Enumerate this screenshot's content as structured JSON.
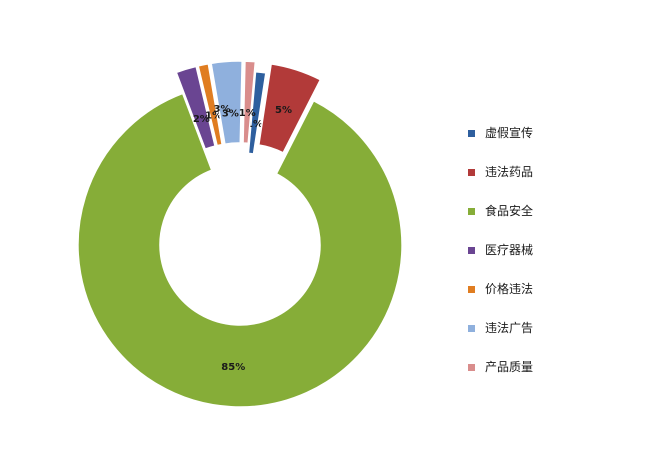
{
  "chart_data": {
    "type": "pie",
    "variant": "exploded-donut",
    "categories": [
      "虚假宣传",
      "违法药品",
      "食品安全",
      "医疗器械",
      "价格违法",
      "违法广告",
      "产品质量"
    ],
    "values": [
      1,
      5,
      85,
      2,
      1,
      3,
      1
    ],
    "data_labels": [
      "1%",
      "5%",
      "85%",
      "2%",
      "1%",
      "3%",
      "1%"
    ],
    "extra_labels": [
      "3%"
    ],
    "colors": [
      "#2e5f9e",
      "#b23a39",
      "#86ad38",
      "#6a4592",
      "#e07d21",
      "#8fb0dd",
      "#d98d8c"
    ],
    "legend_position": "right",
    "title": ""
  },
  "legend": {
    "items": [
      {
        "label": "虚假宣传",
        "color": "#2e5f9e"
      },
      {
        "label": "违法药品",
        "color": "#b23a39"
      },
      {
        "label": "食品安全",
        "color": "#86ad38"
      },
      {
        "label": "医疗器械",
        "color": "#6a4592"
      },
      {
        "label": "价格违法",
        "color": "#e07d21"
      },
      {
        "label": "违法广告",
        "color": "#8fb0dd"
      },
      {
        "label": "产品质量",
        "color": "#d98d8c"
      }
    ]
  }
}
